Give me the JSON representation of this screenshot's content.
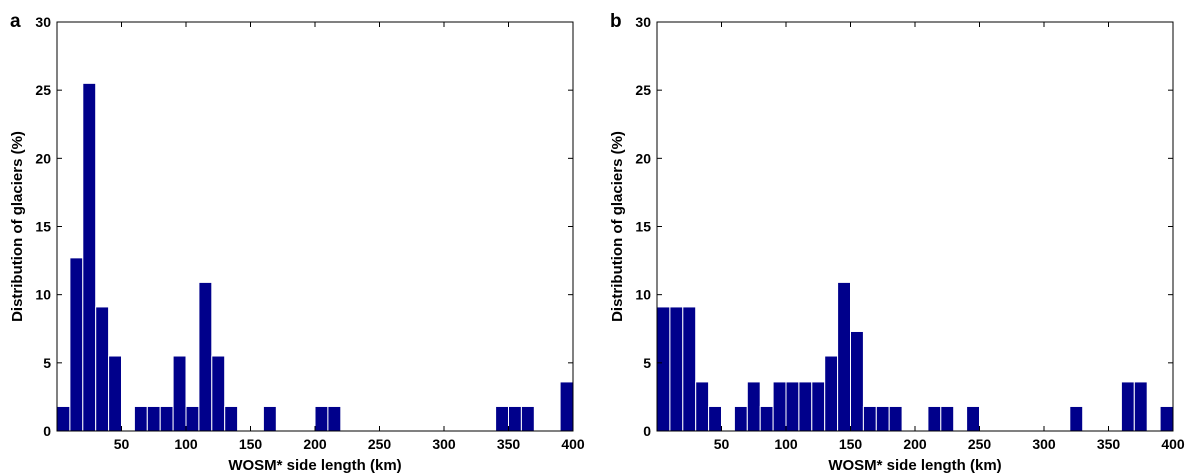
{
  "chart_data": [
    {
      "type": "bar",
      "panel_label": "a",
      "xlabel": "WOSM* side length (km)",
      "ylabel": "Distribution of glaciers (%)",
      "xlim": [
        0,
        400
      ],
      "ylim": [
        0,
        30
      ],
      "xticks": [
        50,
        100,
        150,
        200,
        250,
        300,
        350,
        400
      ],
      "yticks": [
        0,
        5,
        10,
        15,
        20,
        25,
        30
      ],
      "bin_width": 10,
      "color": "#00008b",
      "x": [
        0,
        10,
        20,
        30,
        40,
        50,
        60,
        70,
        80,
        90,
        100,
        110,
        120,
        130,
        140,
        150,
        160,
        170,
        180,
        190,
        200,
        210,
        220,
        230,
        240,
        250,
        260,
        270,
        280,
        290,
        300,
        310,
        320,
        330,
        340,
        350,
        360,
        370,
        380,
        390
      ],
      "values": [
        1.8,
        12.7,
        25.5,
        9.1,
        5.5,
        0,
        1.8,
        1.8,
        1.8,
        5.5,
        1.8,
        10.9,
        5.5,
        1.8,
        0,
        0,
        1.8,
        0,
        0,
        0,
        1.8,
        1.8,
        0,
        0,
        0,
        0,
        0,
        0,
        0,
        0,
        0,
        0,
        0,
        0,
        1.8,
        1.8,
        1.8,
        0,
        0,
        3.6
      ]
    },
    {
      "type": "bar",
      "panel_label": "b",
      "xlabel": "WOSM* side length (km)",
      "ylabel": "Distribution of glaciers (%)",
      "xlim": [
        0,
        400
      ],
      "ylim": [
        0,
        30
      ],
      "xticks": [
        50,
        100,
        150,
        200,
        250,
        300,
        350,
        400
      ],
      "yticks": [
        0,
        5,
        10,
        15,
        20,
        25,
        30
      ],
      "bin_width": 10,
      "color": "#00008b",
      "x": [
        0,
        10,
        20,
        30,
        40,
        50,
        60,
        70,
        80,
        90,
        100,
        110,
        120,
        130,
        140,
        150,
        160,
        170,
        180,
        190,
        200,
        210,
        220,
        230,
        240,
        250,
        260,
        270,
        280,
        290,
        300,
        310,
        320,
        330,
        340,
        350,
        360,
        370,
        380,
        390
      ],
      "values": [
        9.1,
        9.1,
        9.1,
        3.6,
        1.8,
        0,
        1.8,
        3.6,
        1.8,
        3.6,
        3.6,
        3.6,
        3.6,
        5.5,
        10.9,
        7.3,
        1.8,
        1.8,
        1.8,
        0,
        0,
        1.8,
        1.8,
        0,
        1.8,
        0,
        0,
        0,
        0,
        0,
        0,
        0,
        1.8,
        0,
        0,
        0,
        3.6,
        3.6,
        0,
        1.8
      ]
    }
  ]
}
